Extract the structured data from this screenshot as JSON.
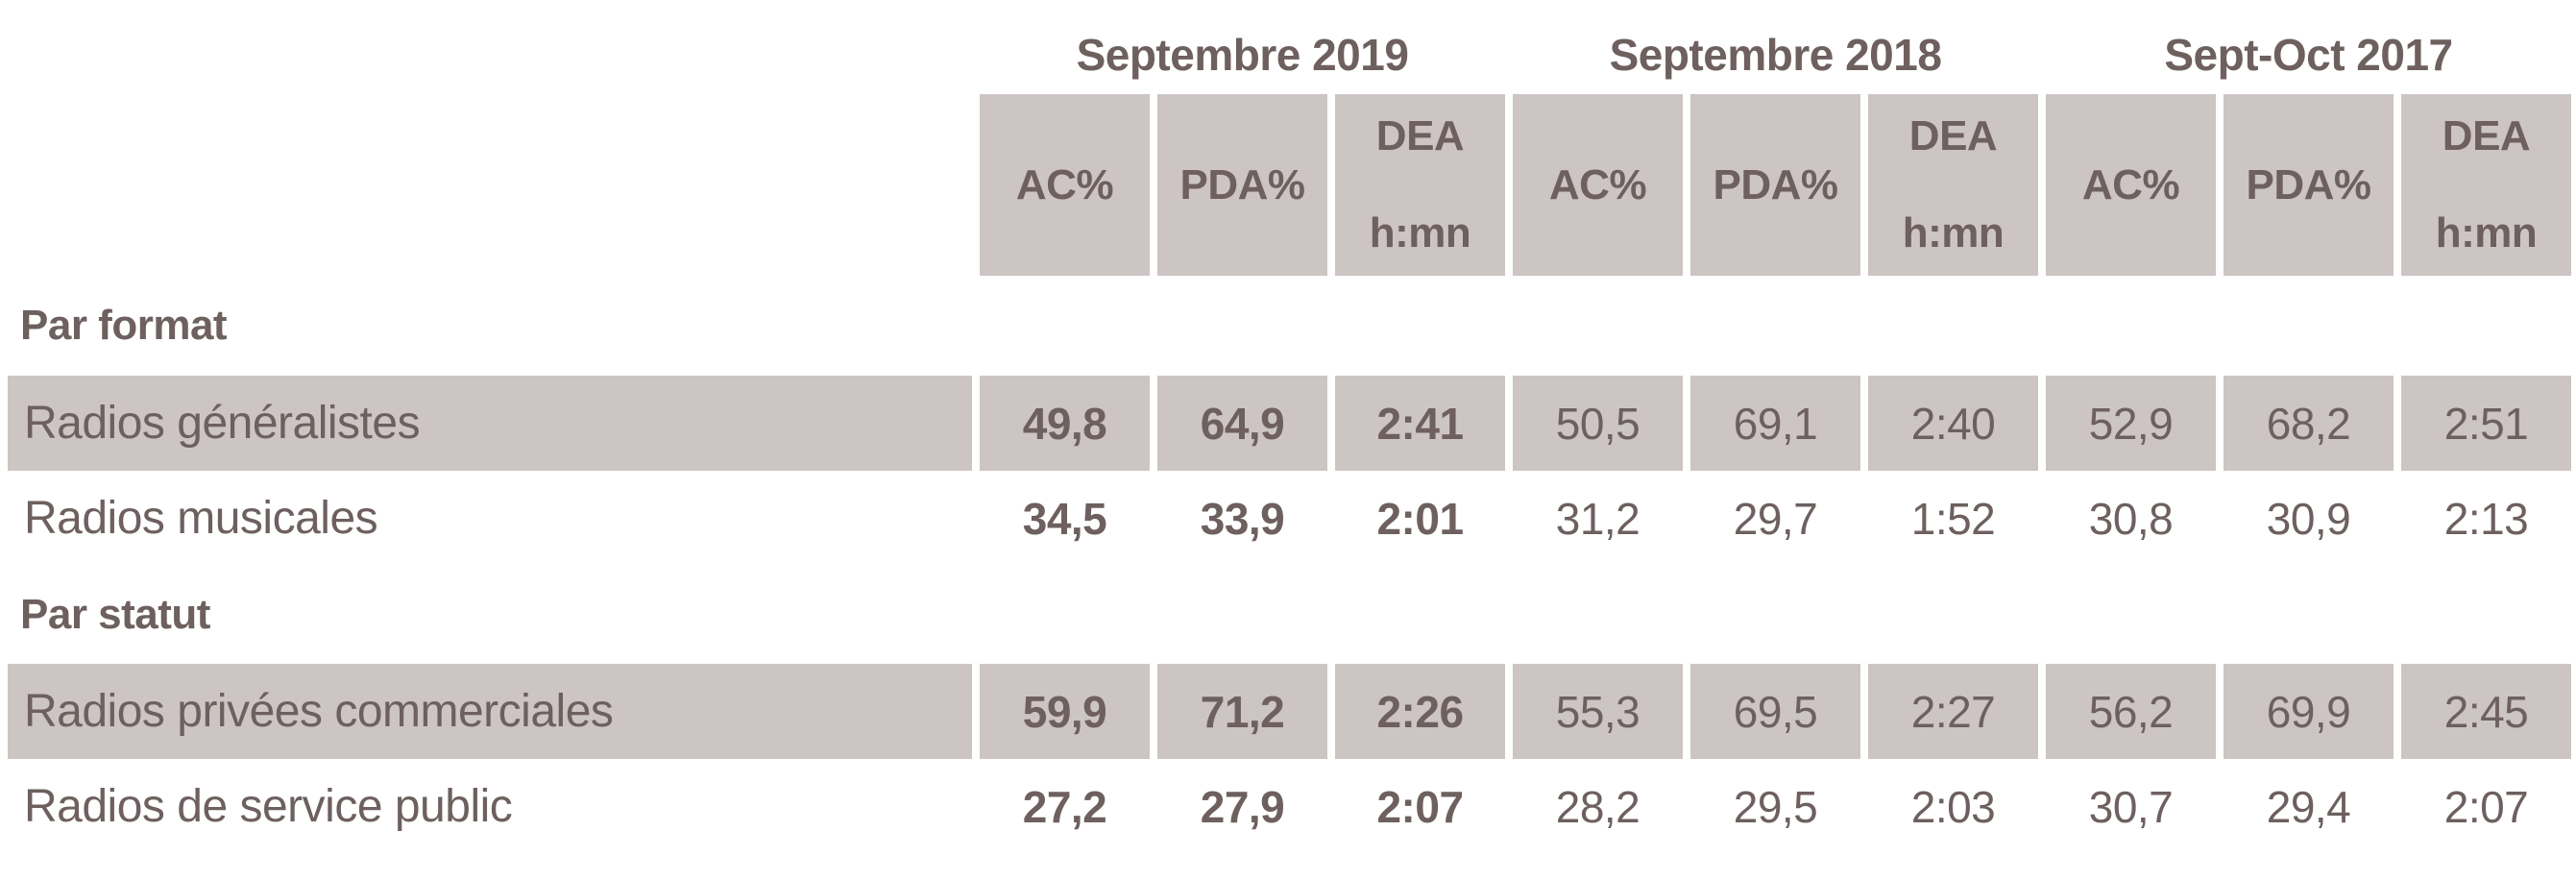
{
  "palette": {
    "page_background": "#ffffff",
    "shaded_cell_background": "#ccc5c4",
    "text_color": "#6d605f"
  },
  "table": {
    "groups": [
      {
        "label": "Septembre 2019"
      },
      {
        "label": "Septembre 2018"
      },
      {
        "label": "Sept-Oct 2017"
      }
    ],
    "subcolumns": {
      "ac": "AC%",
      "pda": "PDA%",
      "dea_line1": "DEA",
      "dea_line2": "h:mn"
    },
    "sections": [
      {
        "title": "Par format",
        "rows": [
          {
            "label": "Radios généralistes",
            "values": [
              "49,8",
              "64,9",
              "2:41",
              "50,5",
              "69,1",
              "2:40",
              "52,9",
              "68,2",
              "2:51"
            ]
          },
          {
            "label": "Radios musicales",
            "values": [
              "34,5",
              "33,9",
              "2:01",
              "31,2",
              "29,7",
              "1:52",
              "30,8",
              "30,9",
              "2:13"
            ]
          }
        ]
      },
      {
        "title": "Par statut",
        "rows": [
          {
            "label": "Radios privées commerciales",
            "values": [
              "59,9",
              "71,2",
              "2:26",
              "55,3",
              "69,5",
              "2:27",
              "56,2",
              "69,9",
              "2:45"
            ]
          },
          {
            "label": "Radios de service public",
            "values": [
              "27,2",
              "27,9",
              "2:07",
              "28,2",
              "29,5",
              "2:03",
              "30,7",
              "29,4",
              "2:07"
            ]
          }
        ]
      }
    ]
  }
}
